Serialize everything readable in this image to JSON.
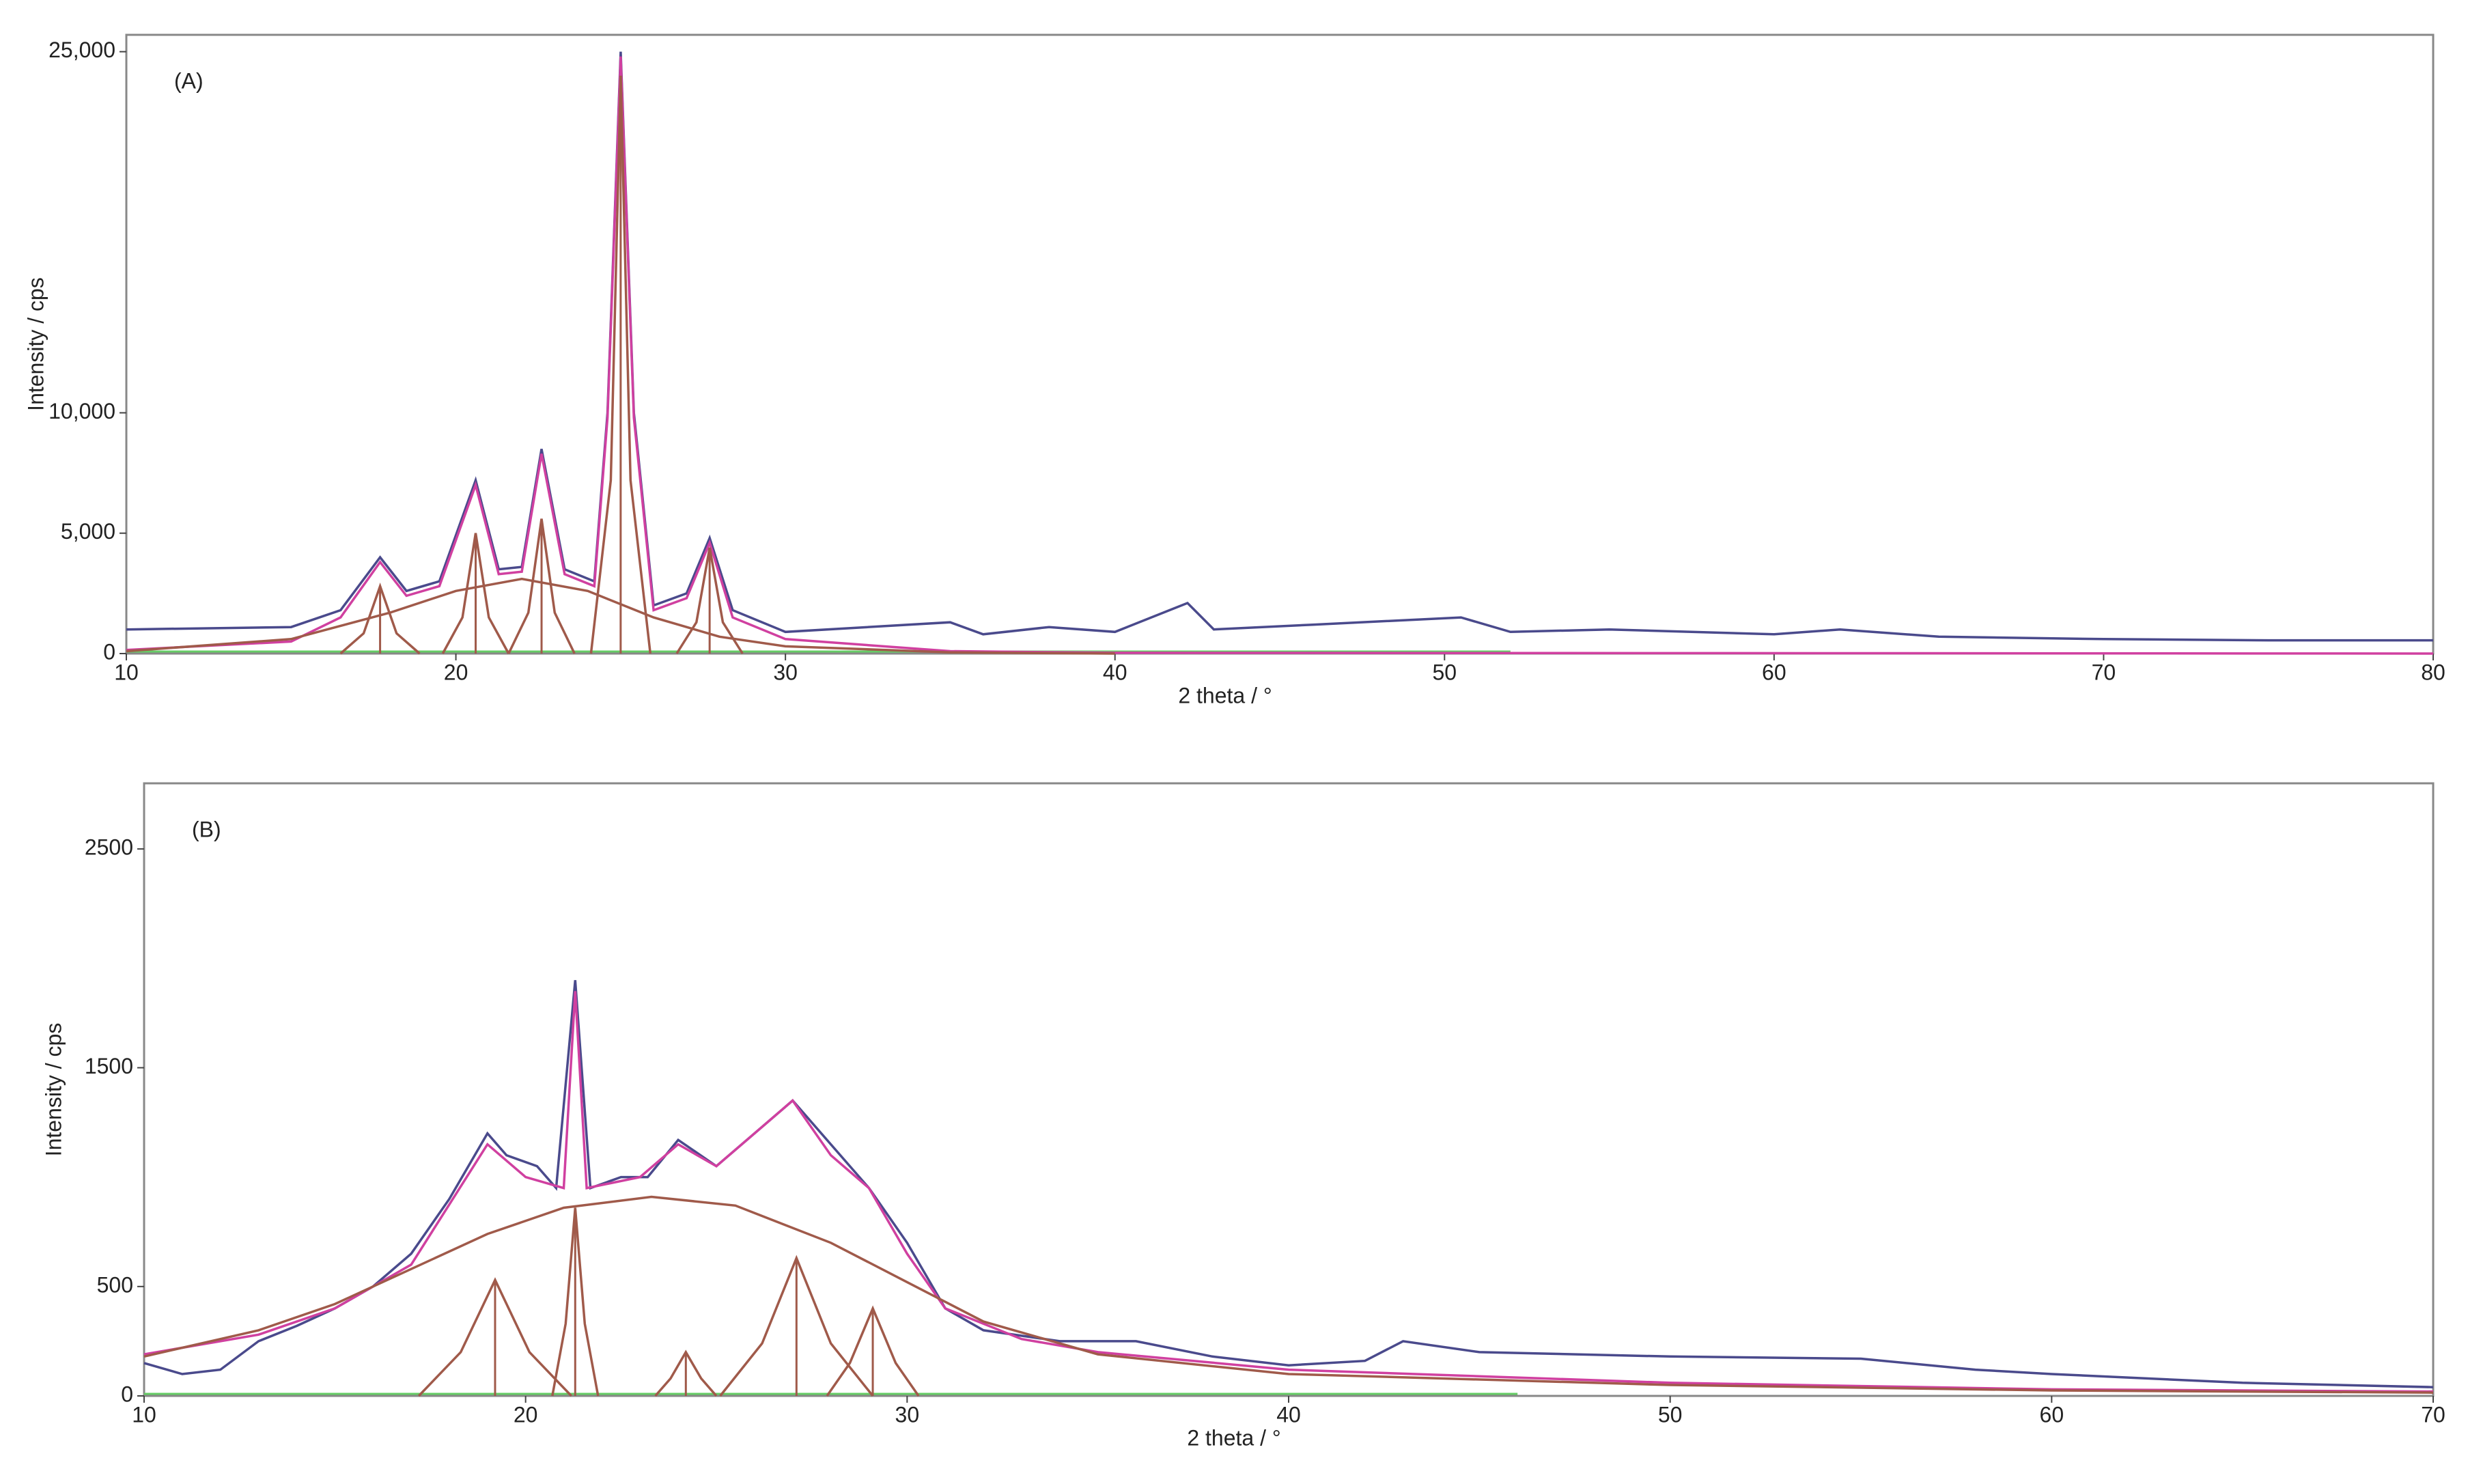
{
  "chart_data": [
    {
      "type": "line",
      "title": "(A)",
      "xlabel": "2 theta / °",
      "ylabel": "Intensity / cps",
      "xlim": [
        10,
        80
      ],
      "ylim": [
        0,
        25700
      ],
      "xticks": [
        10,
        20,
        30,
        40,
        50,
        60,
        70,
        80
      ],
      "yticks": [
        0,
        {
          "value": 5000,
          "label": "5,000"
        },
        {
          "value": 10000,
          "label": "10,000"
        },
        {
          "value": 25000,
          "label": "25,000"
        }
      ],
      "series": [
        {
          "color": "#4a4a8c",
          "x": [
            10,
            15,
            16.5,
            17.7,
            18.5,
            19.5,
            20.6,
            21.3,
            22,
            22.6,
            23.3,
            24.2,
            24.6,
            25,
            25.4,
            26,
            27,
            27.7,
            28.4,
            30,
            35,
            36,
            38,
            40,
            42.2,
            43,
            46,
            50.5,
            52,
            55,
            60,
            62,
            65,
            70,
            75,
            80
          ],
          "values": [
            1000,
            1100,
            1800,
            4000,
            2600,
            3000,
            7200,
            3500,
            3600,
            8500,
            3500,
            3000,
            10000,
            25000,
            10000,
            2000,
            2500,
            4800,
            1800,
            900,
            1300,
            800,
            1100,
            900,
            2100,
            1000,
            1200,
            1500,
            900,
            1000,
            800,
            1000,
            700,
            600,
            550,
            550
          ]
        },
        {
          "color": "#d040a0",
          "x": [
            10,
            15,
            16.5,
            17.7,
            18.5,
            19.5,
            20.6,
            21.3,
            22,
            22.6,
            23.3,
            24.2,
            24.6,
            25,
            25.4,
            26,
            27,
            27.7,
            28.4,
            30,
            35,
            40,
            80
          ],
          "values": [
            150,
            500,
            1500,
            3800,
            2400,
            2800,
            7000,
            3300,
            3400,
            8300,
            3300,
            2800,
            9800,
            24800,
            9800,
            1800,
            2300,
            4600,
            1500,
            600,
            100,
            30,
            0
          ]
        },
        {
          "color": "#a05a4a",
          "x": [
            10,
            15,
            18,
            20,
            22,
            24,
            26,
            28,
            30,
            35,
            40
          ],
          "values": [
            100,
            600,
            1700,
            2600,
            3100,
            2600,
            1500,
            700,
            300,
            50,
            0
          ]
        },
        {
          "color": "#a05a4a",
          "x": [
            16.5,
            17.2,
            17.7,
            18.2,
            18.9
          ],
          "values": [
            0,
            840,
            2800,
            840,
            0
          ]
        },
        {
          "color": "#a05a4a",
          "x": [
            19.6,
            20.2,
            20.6,
            21,
            21.6
          ],
          "values": [
            0,
            1500,
            5000,
            1500,
            0
          ]
        },
        {
          "color": "#a05a4a",
          "x": [
            21.6,
            22.2,
            22.6,
            23,
            23.6
          ],
          "values": [
            0,
            1700,
            5600,
            1700,
            0
          ]
        },
        {
          "color": "#a05a4a",
          "x": [
            24.1,
            24.7,
            25,
            25.3,
            25.9
          ],
          "values": [
            0,
            7200,
            24000,
            7200,
            0
          ]
        },
        {
          "color": "#a05a4a",
          "x": [
            26.7,
            27.3,
            27.7,
            28.1,
            28.7
          ],
          "values": [
            0,
            1300,
            4400,
            1300,
            0
          ]
        }
      ]
    },
    {
      "type": "line",
      "title": "(B)",
      "xlabel": "2 theta / °",
      "ylabel": "Intensity / cps",
      "xlim": [
        10,
        70
      ],
      "ylim": [
        0,
        2800
      ],
      "xticks": [
        10,
        20,
        30,
        40,
        50,
        60,
        70
      ],
      "yticks": [
        0,
        500,
        1500,
        2500
      ],
      "series": [
        {
          "color": "#4a4a8c",
          "x": [
            10,
            11,
            12,
            13,
            14,
            15,
            16,
            17,
            18,
            19,
            19.5,
            20.3,
            20.8,
            21.3,
            21.7,
            22.5,
            23.2,
            24,
            25,
            26,
            27,
            28,
            29,
            30,
            31,
            32,
            34,
            36,
            38,
            40,
            42,
            43,
            45,
            50,
            55,
            58,
            60,
            65,
            70
          ],
          "values": [
            150,
            100,
            120,
            250,
            320,
            400,
            500,
            650,
            900,
            1200,
            1100,
            1050,
            950,
            1900,
            950,
            1000,
            1000,
            1170,
            1050,
            1200,
            1350,
            1150,
            950,
            700,
            400,
            300,
            250,
            250,
            180,
            140,
            160,
            250,
            200,
            180,
            170,
            120,
            100,
            60,
            40
          ]
        },
        {
          "color": "#d040a0",
          "x": [
            10,
            13,
            15,
            17,
            19,
            20,
            21,
            21.3,
            21.6,
            23,
            24,
            25,
            26,
            27,
            28,
            29,
            30,
            31,
            33,
            35,
            40,
            50,
            60,
            70
          ],
          "values": [
            190,
            280,
            400,
            600,
            1150,
            1000,
            950,
            1850,
            950,
            1000,
            1150,
            1050,
            1200,
            1350,
            1100,
            950,
            650,
            400,
            260,
            200,
            120,
            60,
            30,
            20
          ]
        },
        {
          "color": "#a05a4a",
          "x": [
            10,
            13,
            15,
            17,
            19,
            21,
            23.3,
            25.5,
            28,
            30,
            32,
            35,
            40,
            50,
            60,
            70
          ],
          "values": [
            180,
            300,
            420,
            580,
            740,
            860,
            910,
            870,
            700,
            520,
            340,
            190,
            100,
            50,
            25,
            15
          ]
        },
        {
          "color": "#a05a4a",
          "x": [
            17.2,
            18.3,
            19.2,
            20.1,
            21.2
          ],
          "values": [
            0,
            200,
            530,
            200,
            0
          ]
        },
        {
          "color": "#a05a4a",
          "x": [
            20.7,
            21.05,
            21.3,
            21.55,
            21.9
          ],
          "values": [
            0,
            330,
            860,
            330,
            0
          ]
        },
        {
          "color": "#a05a4a",
          "x": [
            23.4,
            23.8,
            24.2,
            24.6,
            25
          ],
          "values": [
            0,
            80,
            200,
            80,
            0
          ]
        },
        {
          "color": "#a05a4a",
          "x": [
            25.1,
            26.2,
            27.1,
            28,
            29.1
          ],
          "values": [
            0,
            240,
            630,
            240,
            0
          ]
        },
        {
          "color": "#a05a4a",
          "x": [
            27.9,
            28.5,
            29.1,
            29.7,
            30.3
          ],
          "values": [
            0,
            150,
            400,
            150,
            0
          ]
        }
      ]
    }
  ]
}
